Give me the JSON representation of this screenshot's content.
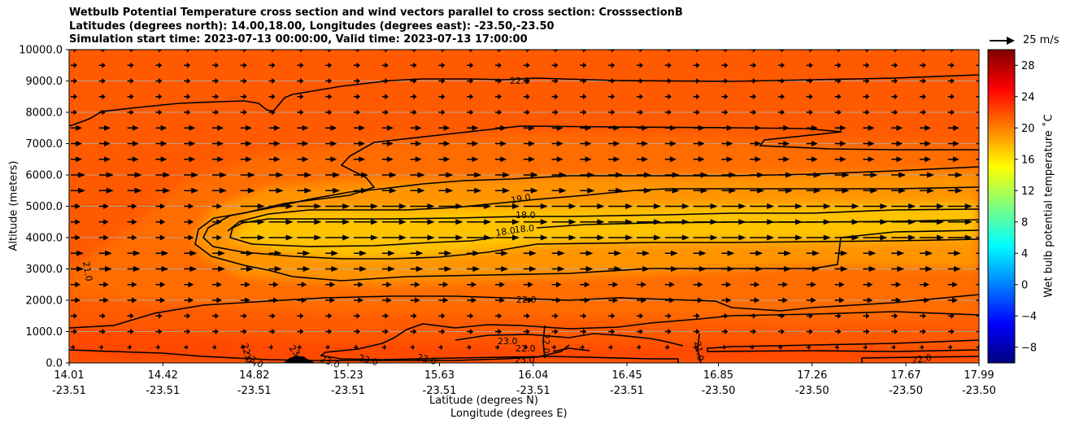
{
  "chart_data": {
    "type": "contour cross-section (filled contours with contour lines and wind vectors)",
    "title_lines": [
      "Wetbulb Potential Temperature cross section and wind vectors parallel to cross section: CrosssectionB",
      "Latitudes (degrees north): 14.00,18.00, Longitudes (degrees east): -23.50,-23.50",
      "Simulation start time: 2023-07-13 00:00:00, Valid time: 2023-07-13 17:00:00"
    ],
    "xlabel_lat": "Latitude (degrees N)",
    "xlabel_lon": "Longitude (degrees E)",
    "ylabel": "Altitude (meters)",
    "x_ticks": [
      {
        "lat": "14.01",
        "lon": "-23.51"
      },
      {
        "lat": "14.42",
        "lon": "-23.51"
      },
      {
        "lat": "14.82",
        "lon": "-23.51"
      },
      {
        "lat": "15.23",
        "lon": "-23.51"
      },
      {
        "lat": "15.63",
        "lon": "-23.51"
      },
      {
        "lat": "16.04",
        "lon": "-23.51"
      },
      {
        "lat": "16.45",
        "lon": "-23.51"
      },
      {
        "lat": "16.85",
        "lon": "-23.50"
      },
      {
        "lat": "17.26",
        "lon": "-23.50"
      },
      {
        "lat": "17.67",
        "lon": "-23.50"
      },
      {
        "lat": "17.99",
        "lon": "-23.50"
      }
    ],
    "x_range": [
      14.01,
      17.99
    ],
    "y_ticks": [
      "0.0",
      "1000.0",
      "2000.0",
      "3000.0",
      "4000.0",
      "5000.0",
      "6000.0",
      "7000.0",
      "8000.0",
      "9000.0",
      "10000.0"
    ],
    "y_range": [
      0,
      10000
    ],
    "grid": "horizontal",
    "colorbar": {
      "label": "Wet bulb potential temperature $^\\circ$C",
      "label_text": "Wet bulb potential temperature ˚C",
      "range": [
        -10,
        30
      ],
      "ticks": [
        "−8",
        "−4",
        "0",
        "4",
        "8",
        "12",
        "16",
        "20",
        "24",
        "28"
      ],
      "colormap": "jet"
    },
    "quiver_key": "25 m/s",
    "contour_labels": [
      "22.0",
      "19.0",
      "18.0",
      "18.0",
      "18.0",
      "21.0",
      "22.0",
      "23.0",
      "22.0",
      "23.0",
      "21.0",
      "22.0",
      "23.0",
      "23.0",
      "23.0",
      "23.0",
      "22.0",
      "23.0",
      "22.0"
    ],
    "filled_regions": [
      {
        "value": 24.5,
        "description": "background above ~6500 m and below ~1500 m"
      },
      {
        "value": 22.5,
        "description": "mid-level layer 1500-6500 m"
      },
      {
        "value": 20.5,
        "description": "band 2800-5300 m"
      },
      {
        "value": 18.5,
        "description": "core 3300-4800 m"
      },
      {
        "value": 26,
        "description": "surface layer near left boundary"
      }
    ],
    "wind_vectors": "mostly eastward (parallel to cross section), strongest 4000-5000 m (~12-15 m/s), weak near surface"
  }
}
